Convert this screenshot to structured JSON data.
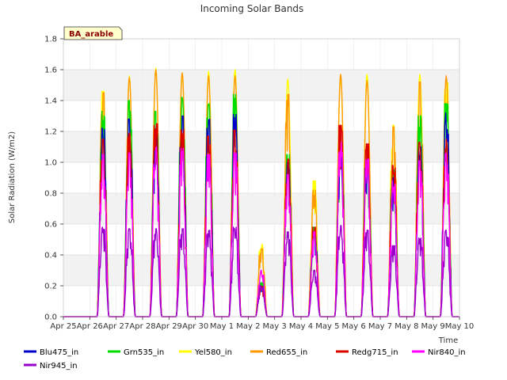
{
  "chart_data": {
    "type": "line",
    "title": "Incoming Solar Bands",
    "xlabel": "Time",
    "ylabel": "Solar Radiation (W/m2)",
    "site_badge": "BA_arable",
    "x_ticks": [
      "Apr 25",
      "Apr 26",
      "Apr 27",
      "Apr 28",
      "Apr 29",
      "Apr 30",
      "May 1",
      "May 2",
      "May 3",
      "May 4",
      "May 5",
      "May 6",
      "May 7",
      "May 8",
      "May 9",
      "May 10"
    ],
    "y_ticks": [
      "0.0",
      "0.2",
      "0.4",
      "0.6",
      "0.8",
      "1.0",
      "1.2",
      "1.4",
      "1.6",
      "1.8"
    ],
    "xlim": [
      0,
      15
    ],
    "ylim": [
      0,
      1.8
    ],
    "grid": true,
    "legend_position": "bottom",
    "x_unit": "days since Apr 25 (tick labels above)",
    "days": [
      "Apr 25",
      "Apr 26",
      "Apr 27",
      "Apr 28",
      "Apr 29",
      "Apr 30",
      "May 1",
      "May 2",
      "May 3",
      "May 4",
      "May 5",
      "May 6",
      "May 7",
      "May 8",
      "May 9"
    ],
    "series": [
      {
        "name": "Blu475_in",
        "color": "#0000cc",
        "daily_peak": [
          0,
          1.22,
          1.28,
          1.22,
          1.3,
          1.28,
          1.31,
          0.2,
          1.0,
          0.55,
          1.1,
          1.05,
          0.9,
          1.1,
          1.32
        ]
      },
      {
        "name": "Grn535_in",
        "color": "#00dd00",
        "daily_peak": [
          0,
          1.33,
          1.4,
          1.33,
          1.42,
          1.38,
          1.44,
          0.22,
          1.05,
          0.58,
          1.15,
          1.1,
          0.95,
          1.3,
          1.38
        ]
      },
      {
        "name": "Yel580_in",
        "color": "#ffff00",
        "daily_peak": [
          0,
          1.46,
          1.56,
          1.61,
          1.58,
          1.59,
          1.6,
          0.47,
          1.54,
          0.88,
          1.56,
          1.57,
          1.24,
          1.57,
          1.52
        ]
      },
      {
        "name": "Red655_in",
        "color": "#ff9900",
        "daily_peak": [
          0,
          1.45,
          1.55,
          1.6,
          1.58,
          1.56,
          1.56,
          0.44,
          1.44,
          0.82,
          1.57,
          1.53,
          1.23,
          1.52,
          1.56
        ]
      },
      {
        "name": "Redg715_in",
        "color": "#dd0000",
        "daily_peak": [
          0,
          1.15,
          1.19,
          1.25,
          1.21,
          1.17,
          1.21,
          0.2,
          1.02,
          0.58,
          1.24,
          1.12,
          0.98,
          1.13,
          1.15
        ]
      },
      {
        "name": "Nir840_in",
        "color": "#ff00ff",
        "daily_peak": [
          0,
          1.05,
          1.06,
          1.1,
          1.09,
          1.05,
          1.06,
          0.3,
          0.92,
          0.55,
          1.13,
          1.02,
          0.88,
          1.01,
          1.06
        ]
      },
      {
        "name": "Nir945_in",
        "color": "#9900cc",
        "daily_peak": [
          0,
          0.58,
          0.57,
          0.57,
          0.57,
          0.56,
          0.58,
          0.2,
          0.55,
          0.3,
          0.59,
          0.56,
          0.46,
          0.51,
          0.56
        ]
      }
    ]
  }
}
